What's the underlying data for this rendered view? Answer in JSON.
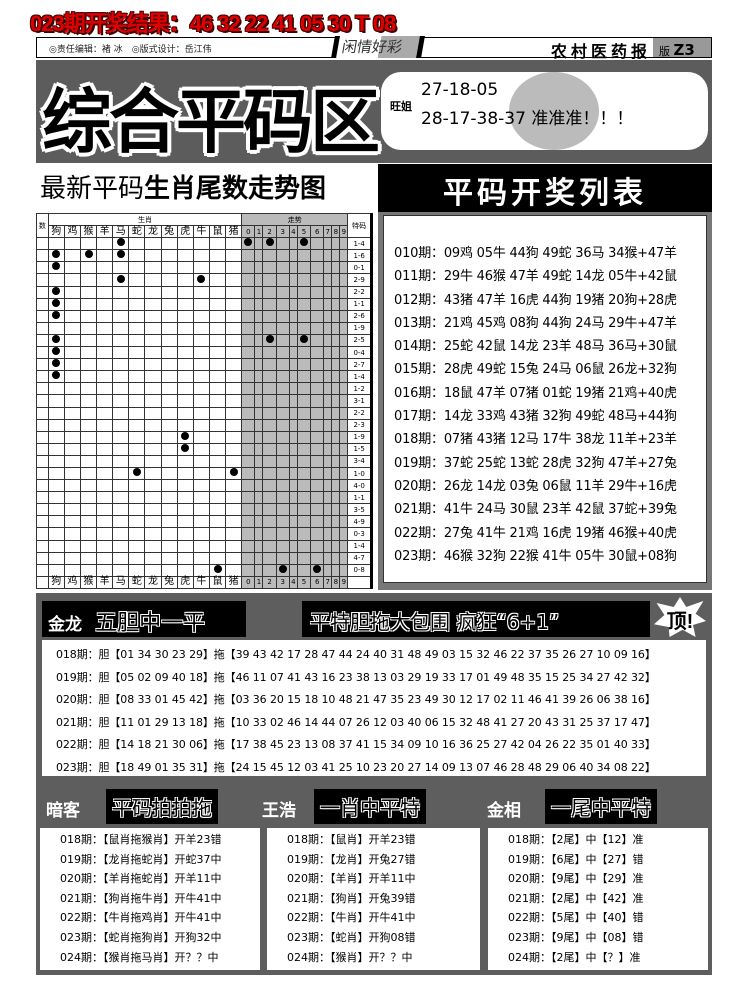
{
  "result_line": "023期开奖结果：46 32 22 41 05 30 T 08",
  "header": {
    "editor": "◎责任编辑：褚 冰　◎版式设计：岳江伟",
    "column": "闲情好彩",
    "paper": "农村医药报",
    "edition_label": "版",
    "edition": "Z3"
  },
  "banner": {
    "title": "综合平码区",
    "author": "旺姐",
    "pick1": "27-18-05",
    "pick2": "28-17-38-37 准准准！！！"
  },
  "chart": {
    "title_plain": "最新平码",
    "title_bold": "生肖尾数走势图",
    "col_num": "数",
    "group_zodiac": "生肖",
    "group_trend": "走势",
    "col_special": "特码",
    "zodiacs": [
      "狗",
      "鸡",
      "猴",
      "羊",
      "马",
      "蛇",
      "龙",
      "兔",
      "虎",
      "牛",
      "鼠",
      "猪"
    ],
    "digits": [
      "0",
      "1",
      "2",
      "3",
      "4",
      "5",
      "6",
      "7",
      "8",
      "9"
    ],
    "rows": [
      {
        "z": [
          4
        ],
        "t": [
          0,
          2,
          5
        ],
        "s": "1-4"
      },
      {
        "z": [
          0,
          2,
          4
        ],
        "t": [],
        "s": "1-6"
      },
      {
        "z": [
          0
        ],
        "t": [],
        "s": "0-1"
      },
      {
        "z": [
          4,
          9
        ],
        "t": [],
        "s": "2-9"
      },
      {
        "z": [
          0
        ],
        "t": [],
        "s": "2-2"
      },
      {
        "z": [
          0
        ],
        "t": [],
        "s": "1-1"
      },
      {
        "z": [
          0
        ],
        "t": [],
        "s": "2-6"
      },
      {
        "z": [],
        "t": [],
        "s": "1-9"
      },
      {
        "z": [
          0
        ],
        "t": [
          2,
          5
        ],
        "s": "2-5"
      },
      {
        "z": [
          0
        ],
        "t": [],
        "s": "0-4"
      },
      {
        "z": [
          0
        ],
        "t": [],
        "s": "2-7"
      },
      {
        "z": [
          0
        ],
        "t": [],
        "s": "1-4"
      },
      {
        "z": [],
        "t": [],
        "s": "1-2"
      },
      {
        "z": [],
        "t": [],
        "s": "3-1"
      },
      {
        "z": [],
        "t": [],
        "s": "2-2"
      },
      {
        "z": [],
        "t": [],
        "s": "2-3"
      },
      {
        "z": [
          8
        ],
        "t": [],
        "s": "1-9"
      },
      {
        "z": [
          8
        ],
        "t": [],
        "s": "1-5"
      },
      {
        "z": [],
        "t": [],
        "s": "3-4"
      },
      {
        "z": [
          5,
          11
        ],
        "t": [],
        "s": "1-0"
      },
      {
        "z": [],
        "t": [],
        "s": "4-0"
      },
      {
        "z": [],
        "t": [],
        "s": "1-1"
      },
      {
        "z": [],
        "t": [],
        "s": "3-5"
      },
      {
        "z": [],
        "t": [],
        "s": "4-9"
      },
      {
        "z": [],
        "t": [],
        "s": "0-3"
      },
      {
        "z": [],
        "t": [],
        "s": "1-4"
      },
      {
        "z": [],
        "t": [],
        "s": "4-7"
      },
      {
        "z": [
          10
        ],
        "t": [
          3,
          6
        ],
        "s": "0-8"
      }
    ]
  },
  "draw_list": {
    "title": "平码开奖列表",
    "rows": [
      "010期：09鸡 05牛 44狗 49蛇 36马 34猴+47羊",
      "011期：29牛 46猴 47羊 49蛇 14龙 05牛+42鼠",
      "012期：43猪 47羊 16虎 44狗 19猪 20狗+28虎",
      "013期：21鸡 45鸡 08狗 44狗 24马 29牛+47羊",
      "014期：25蛇 42鼠 14龙 23羊 48马 36马+30鼠",
      "015期：28虎 49蛇 15兔 24马 06鼠 26龙+32狗",
      "016期：18鼠 47羊 07猪 01蛇 19猪 21鸡+40虎",
      "017期：14龙 33鸡 43猪 32狗 49蛇 48马+44狗",
      "018期：07猪 43猪 12马 17牛 38龙 11羊+23羊",
      "019期：37蛇 25蛇 13蛇 28虎 32狗 47羊+27兔",
      "020期：26龙 14龙 03兔 06鼠 11羊 29牛+16虎",
      "021期：41牛 24马 30鼠 23羊 42鼠 37蛇+39兔",
      "022期：27兔 41牛 21鸡 16虎 19猪 46猴+40虎",
      "023期：46猴 32狗 22猴 41牛 05牛 30鼠+08狗"
    ]
  },
  "six_one": {
    "author": "金龙",
    "title1": "五胆中一平",
    "title2": "平特胆拖大包围 疯狂“6+1”",
    "badge": "顶!",
    "rows": [
      "018期：胆【01 34 30 23 29】拖【39 43 42 17 28 47 44 24 40 31 48 49 03 15 32 46 22 37 35 26 27 10 09 16】",
      "019期：胆【05 02 09 40 18】拖【46 11 07 41 43 16 23 38 13 03 29 19 33 17 01 49 48 35 15 25 34 27 42 32】",
      "020期：胆【08 33 01 45 42】拖【03 36 20 15 18 10 48 21 47 35 23 49 30 12 17 02 11 46 41 39 26 06 38 16】",
      "021期：胆【11 01 29 13 18】拖【10 33 02 46 14 44 07 26 12 03 40 06 15 32 48 41 27 20 43 31 25 37 17 47】",
      "022期：胆【14 18 21 30 06】拖【17 38 45 23 13 08 37 41 15 34 09 10 16 36 25 27 42 04 26 22 35 01 40 33】",
      "023期：胆【18 49 01 35 31】拖【24 15 45 12 03 41 25 10 23 20 27 14 09 13 07 46 28 48 29 06 40 34 08 22】"
    ]
  },
  "columns": [
    {
      "author": "暗客",
      "title": "平码拍拍拖",
      "rows": [
        "018期：【鼠肖拖猴肖】开羊23错",
        "019期：【龙肖拖蛇肖】开蛇37中",
        "020期：【羊肖拖蛇肖】开羊11中",
        "021期：【狗肖拖牛肖】开牛41中",
        "022期：【牛肖拖鸡肖】开牛41中",
        "023期：【蛇肖拖狗肖】开狗32中",
        "024期：【猴肖拖马肖】开？？中"
      ]
    },
    {
      "author": "王浩",
      "title": "一肖中平特",
      "rows": [
        "018期：【鼠肖】开羊23错",
        "019期：【龙肖】开兔27错",
        "020期：【羊肖】开羊11中",
        "021期：【狗肖】开兔39错",
        "022期：【牛肖】开牛41中",
        "023期：【蛇肖】开狗08错",
        "024期：【猴肖】开？？中"
      ]
    },
    {
      "author": "金相",
      "title": "一尾中平特",
      "rows": [
        "018期：【2尾】中【12】准",
        "019期：【6尾】中【27】错",
        "020期：【9尾】中【29】准",
        "021期：【2尾】中【42】准",
        "022期：【5尾】中【40】错",
        "023期：【9尾】中【08】错",
        "024期：【2尾】中【？】准"
      ]
    }
  ]
}
